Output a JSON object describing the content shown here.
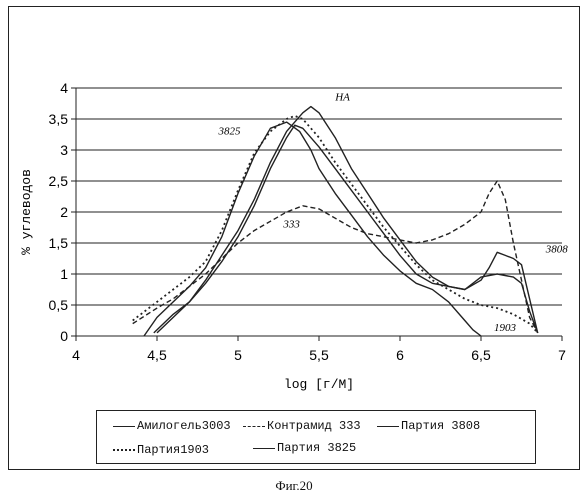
{
  "chart_data": {
    "type": "line",
    "xlabel": "log [г/М]",
    "ylabel": "% углеводов",
    "xlim": [
      4,
      7
    ],
    "ylim": [
      0,
      4
    ],
    "x_ticks": [
      "4",
      "4,5",
      "5",
      "5,5",
      "6",
      "6,5",
      "7"
    ],
    "y_ticks": [
      "0",
      "0,5",
      "1",
      "1,5",
      "2",
      "2,5",
      "3",
      "3,5",
      "4"
    ],
    "grid": "horizontal",
    "legend_position": "bottom",
    "series": [
      {
        "name": "Амилогель3003",
        "style": "solid",
        "x": [
          4.42,
          4.5,
          4.6,
          4.7,
          4.8,
          4.9,
          5.0,
          5.1,
          5.2,
          5.3,
          5.38,
          5.45,
          5.5,
          5.6,
          5.7,
          5.8,
          5.9,
          6.0,
          6.1,
          6.2,
          6.3,
          6.4,
          6.45,
          6.5
        ],
        "y": [
          0.0,
          0.3,
          0.55,
          0.8,
          1.1,
          1.6,
          2.3,
          2.9,
          3.35,
          3.45,
          3.3,
          3.0,
          2.7,
          2.3,
          1.95,
          1.6,
          1.3,
          1.05,
          0.85,
          0.75,
          0.55,
          0.25,
          0.1,
          0.0
        ]
      },
      {
        "name": "Контрамид 333",
        "style": "dashed",
        "x": [
          4.35,
          4.5,
          4.6,
          4.7,
          4.8,
          4.9,
          5.0,
          5.1,
          5.2,
          5.3,
          5.4,
          5.5,
          5.6,
          5.7,
          5.8,
          5.9,
          6.0,
          6.1,
          6.2,
          6.3,
          6.4,
          6.5,
          6.55,
          6.6,
          6.65,
          6.7,
          6.75,
          6.8,
          6.85
        ],
        "y": [
          0.2,
          0.45,
          0.6,
          0.8,
          1.0,
          1.25,
          1.5,
          1.7,
          1.85,
          2.0,
          2.1,
          2.05,
          1.9,
          1.75,
          1.65,
          1.6,
          1.55,
          1.5,
          1.55,
          1.65,
          1.8,
          2.0,
          2.3,
          2.5,
          2.2,
          1.5,
          0.9,
          0.3,
          0.05
        ]
      },
      {
        "name": "Партия 3808",
        "style": "solid",
        "x": [
          4.5,
          4.6,
          4.7,
          4.8,
          4.9,
          5.0,
          5.1,
          5.2,
          5.3,
          5.4,
          5.45,
          5.5,
          5.6,
          5.7,
          5.8,
          5.9,
          6.0,
          6.1,
          6.2,
          6.3,
          6.4,
          6.5,
          6.55,
          6.6,
          6.65,
          6.7,
          6.75,
          6.8,
          6.85
        ],
        "y": [
          0.05,
          0.3,
          0.55,
          0.9,
          1.3,
          1.7,
          2.2,
          2.8,
          3.3,
          3.6,
          3.7,
          3.6,
          3.2,
          2.7,
          2.3,
          1.9,
          1.55,
          1.2,
          0.95,
          0.8,
          0.75,
          0.9,
          1.1,
          1.35,
          1.3,
          1.25,
          1.15,
          0.6,
          0.05
        ]
      },
      {
        "name": "Партия1903",
        "style": "dotted",
        "x": [
          4.35,
          4.5,
          4.6,
          4.7,
          4.8,
          4.9,
          5.0,
          5.1,
          5.2,
          5.3,
          5.35,
          5.4,
          5.5,
          5.6,
          5.7,
          5.8,
          5.9,
          6.0,
          6.1,
          6.2,
          6.3,
          6.4,
          6.5,
          6.6,
          6.7,
          6.8,
          6.85
        ],
        "y": [
          0.25,
          0.55,
          0.75,
          0.95,
          1.2,
          1.7,
          2.35,
          2.95,
          3.3,
          3.5,
          3.55,
          3.5,
          3.2,
          2.8,
          2.45,
          2.1,
          1.75,
          1.45,
          1.15,
          0.9,
          0.75,
          0.6,
          0.5,
          0.45,
          0.35,
          0.2,
          0.05
        ]
      },
      {
        "name": "Партия 3825",
        "style": "solid",
        "x": [
          4.48,
          4.6,
          4.7,
          4.8,
          4.9,
          5.0,
          5.1,
          5.2,
          5.3,
          5.35,
          5.4,
          5.5,
          5.6,
          5.7,
          5.8,
          5.9,
          6.0,
          6.1,
          6.2,
          6.3,
          6.4,
          6.5,
          6.6,
          6.7,
          6.75,
          6.8,
          6.85
        ],
        "y": [
          0.05,
          0.35,
          0.55,
          0.85,
          1.2,
          1.6,
          2.1,
          2.7,
          3.2,
          3.4,
          3.35,
          3.05,
          2.7,
          2.35,
          2.0,
          1.65,
          1.3,
          1.0,
          0.85,
          0.8,
          0.75,
          0.95,
          1.0,
          0.95,
          0.85,
          0.4,
          0.05
        ]
      }
    ],
    "annotations": [
      {
        "text": "3825",
        "x": 4.88,
        "y": 3.25
      },
      {
        "text": "HA",
        "x": 5.6,
        "y": 3.8
      },
      {
        "text": "333",
        "x": 5.28,
        "y": 1.75
      },
      {
        "text": "3808",
        "x": 6.9,
        "y": 1.35
      },
      {
        "text": "1903",
        "x": 6.58,
        "y": 0.08
      }
    ]
  },
  "caption": "Фиг.20"
}
